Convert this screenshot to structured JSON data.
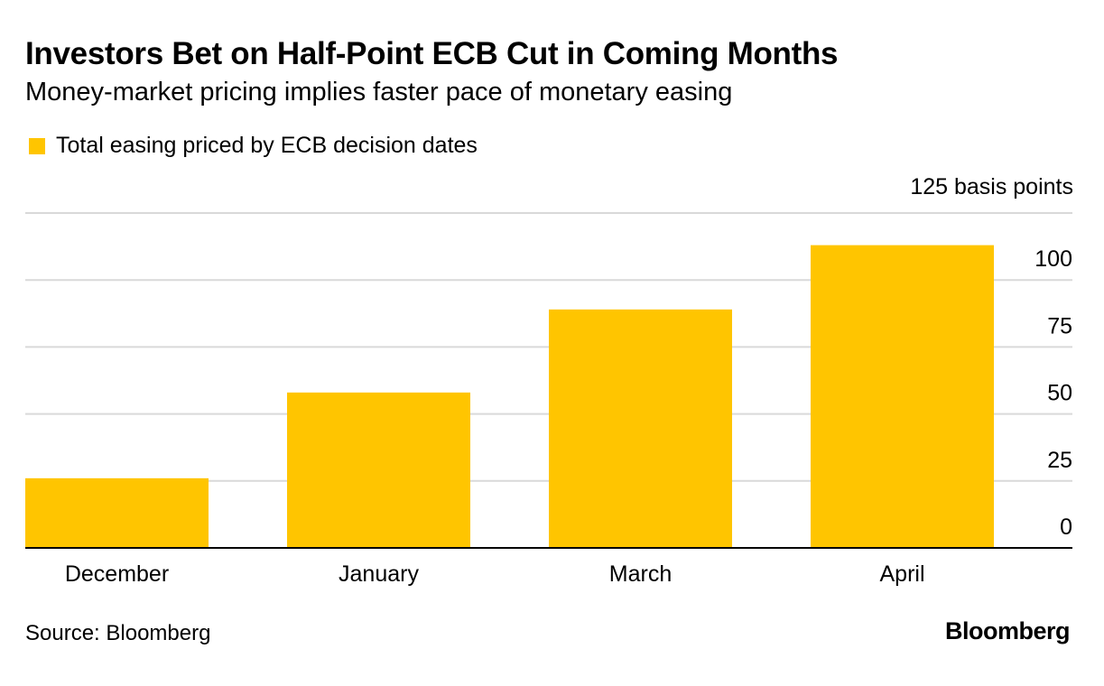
{
  "colors": {
    "bar": "#FFC500",
    "grid": "#d9d9d9",
    "axis": "#000000",
    "text": "#000000"
  },
  "chart_data": {
    "type": "bar",
    "title": "Investors Bet on Half-Point ECB Cut in Coming Months",
    "subtitle": "Money-market pricing implies faster pace of monetary easing",
    "legend": [
      "Total easing priced by ECB decision dates"
    ],
    "legend_position": "top-left",
    "categories": [
      "December",
      "January",
      "March",
      "April"
    ],
    "series": [
      {
        "name": "Total easing priced by ECB decision dates",
        "values": [
          26,
          58,
          89,
          113
        ]
      }
    ],
    "ylabel": "125 basis points",
    "yticks": [
      "0",
      "25",
      "50",
      "75",
      "100"
    ],
    "ylim": [
      0,
      125
    ],
    "grid": true
  },
  "footer": {
    "source": "Source: Bloomberg",
    "brand": "Bloomberg"
  }
}
